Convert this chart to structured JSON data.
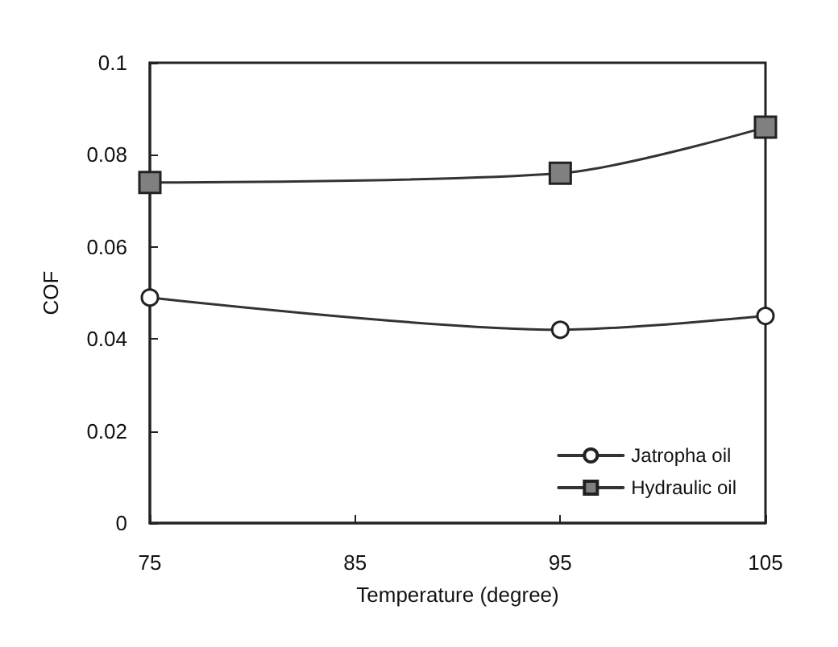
{
  "chart_data": {
    "type": "line",
    "xlabel": "Temperature (degree)",
    "ylabel": "COF",
    "x": [
      75,
      95,
      105
    ],
    "series": [
      {
        "name": "Jatropha oil",
        "color": "#ffffff",
        "marker": "circle",
        "values": [
          0.049,
          0.042,
          0.045
        ]
      },
      {
        "name": "Hydraulic oil",
        "color": "#808080",
        "marker": "square",
        "values": [
          0.074,
          0.076,
          0.086
        ]
      }
    ],
    "xlim": [
      75,
      105
    ],
    "xticks": [
      75,
      85,
      95,
      105
    ],
    "ylim": [
      0,
      0.1
    ],
    "yticks": [
      0,
      0.02,
      0.04,
      0.06,
      0.08,
      0.1
    ],
    "grid": false,
    "legend": "bottom right",
    "line_style": "solid"
  }
}
